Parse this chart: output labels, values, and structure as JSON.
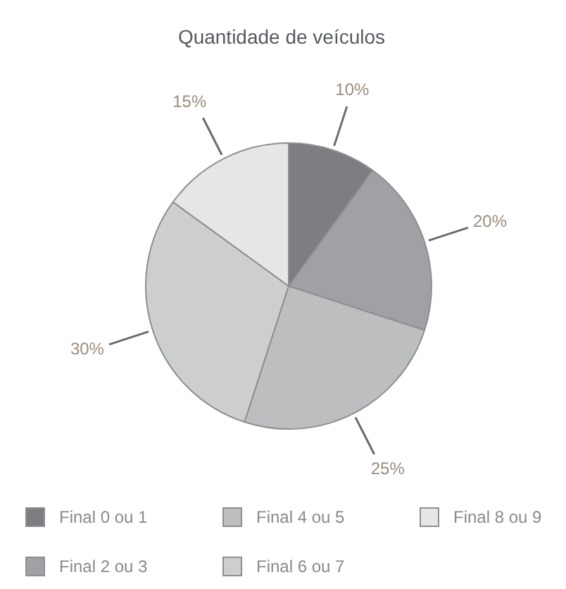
{
  "chart_data": {
    "type": "pie",
    "title": "Quantidade de veículos",
    "categories": [
      "Final 0 ou 1",
      "Final 2 ou 3",
      "Final 4 ou 5",
      "Final 6 ou 7",
      "Final 8 ou 9"
    ],
    "values": [
      10,
      20,
      25,
      30,
      15
    ],
    "colors": [
      "#7d7e82",
      "#a0a1a4",
      "#bdbec0",
      "#cdcecf",
      "#e6e6e8"
    ],
    "value_labels": [
      "10%",
      "20%",
      "25%",
      "30%",
      "15%"
    ],
    "legend": "bottom"
  }
}
